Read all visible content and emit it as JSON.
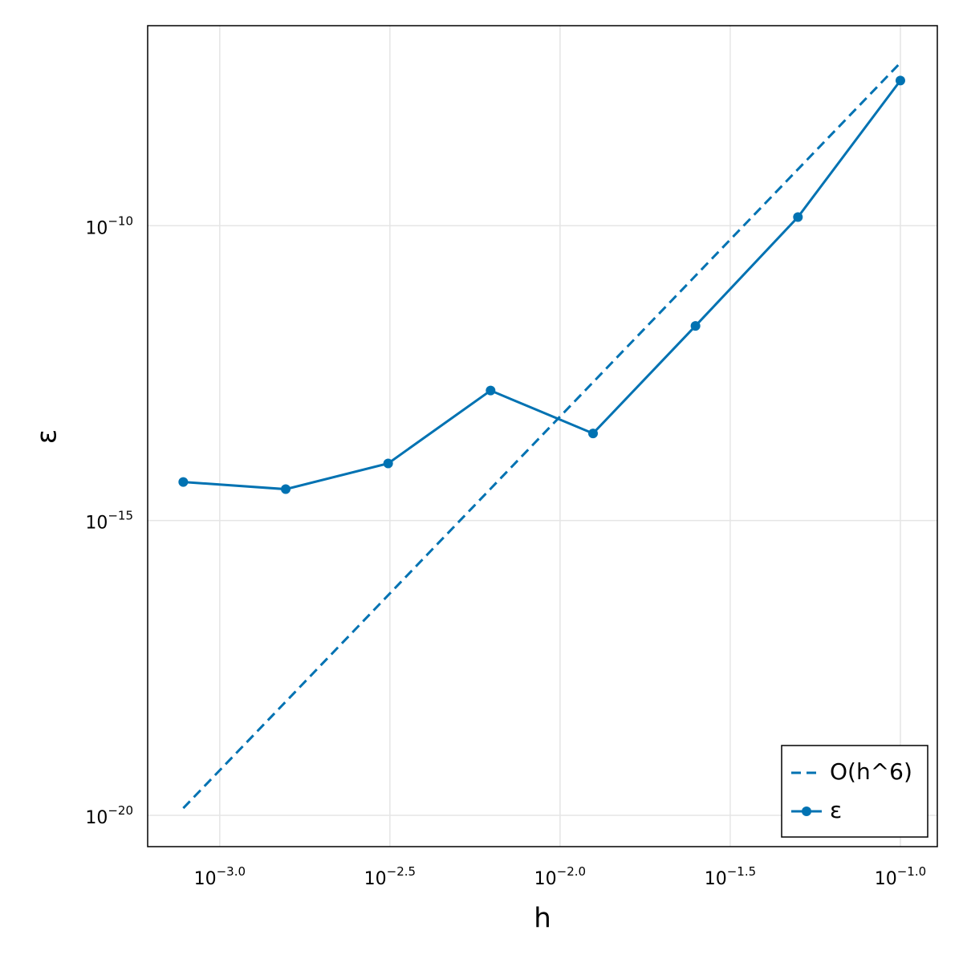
{
  "chart_data": {
    "type": "line",
    "x_label": "h",
    "y_label": "ε",
    "x": [
      0.00078125,
      0.0015625,
      0.003125,
      0.00625,
      0.0125,
      0.025,
      0.05,
      0.1
    ],
    "series": [
      {
        "name": "O(h^6)",
        "color": "#0072b2",
        "dash": "dashed",
        "marker": false,
        "values": [
          1.32e-20,
          8.44e-19,
          5.4e-17,
          3.46e-15,
          2.21e-13,
          1.416e-11,
          9.06e-10,
          5.8e-08
        ]
      },
      {
        "name": "ε",
        "color": "#0072b2",
        "dash": "solid",
        "marker": true,
        "values": [
          4.5e-15,
          3.4e-15,
          9.3e-15,
          1.6e-13,
          3e-14,
          2e-12,
          1.4e-10,
          2.9e-08
        ]
      }
    ],
    "xscale": "log",
    "yscale": "log",
    "xlim": [
      0.000614,
      0.1284
    ],
    "ylim": [
      2.94e-21,
      2.47e-07
    ],
    "xticks": [
      {
        "value": 0.001,
        "label": "10−3.0"
      },
      {
        "value": 0.0031622776601683794,
        "label": "10−2.5"
      },
      {
        "value": 0.01,
        "label": "10−2.0"
      },
      {
        "value": 0.03162277660168379,
        "label": "10−1.5"
      },
      {
        "value": 0.1,
        "label": "10−1.0"
      }
    ],
    "yticks": [
      {
        "value": 1e-20,
        "label": "10−20"
      },
      {
        "value": 1e-15,
        "label": "10−15"
      },
      {
        "value": 1e-10,
        "label": "10−10"
      }
    ],
    "grid": true,
    "legend": "bottom-right"
  }
}
